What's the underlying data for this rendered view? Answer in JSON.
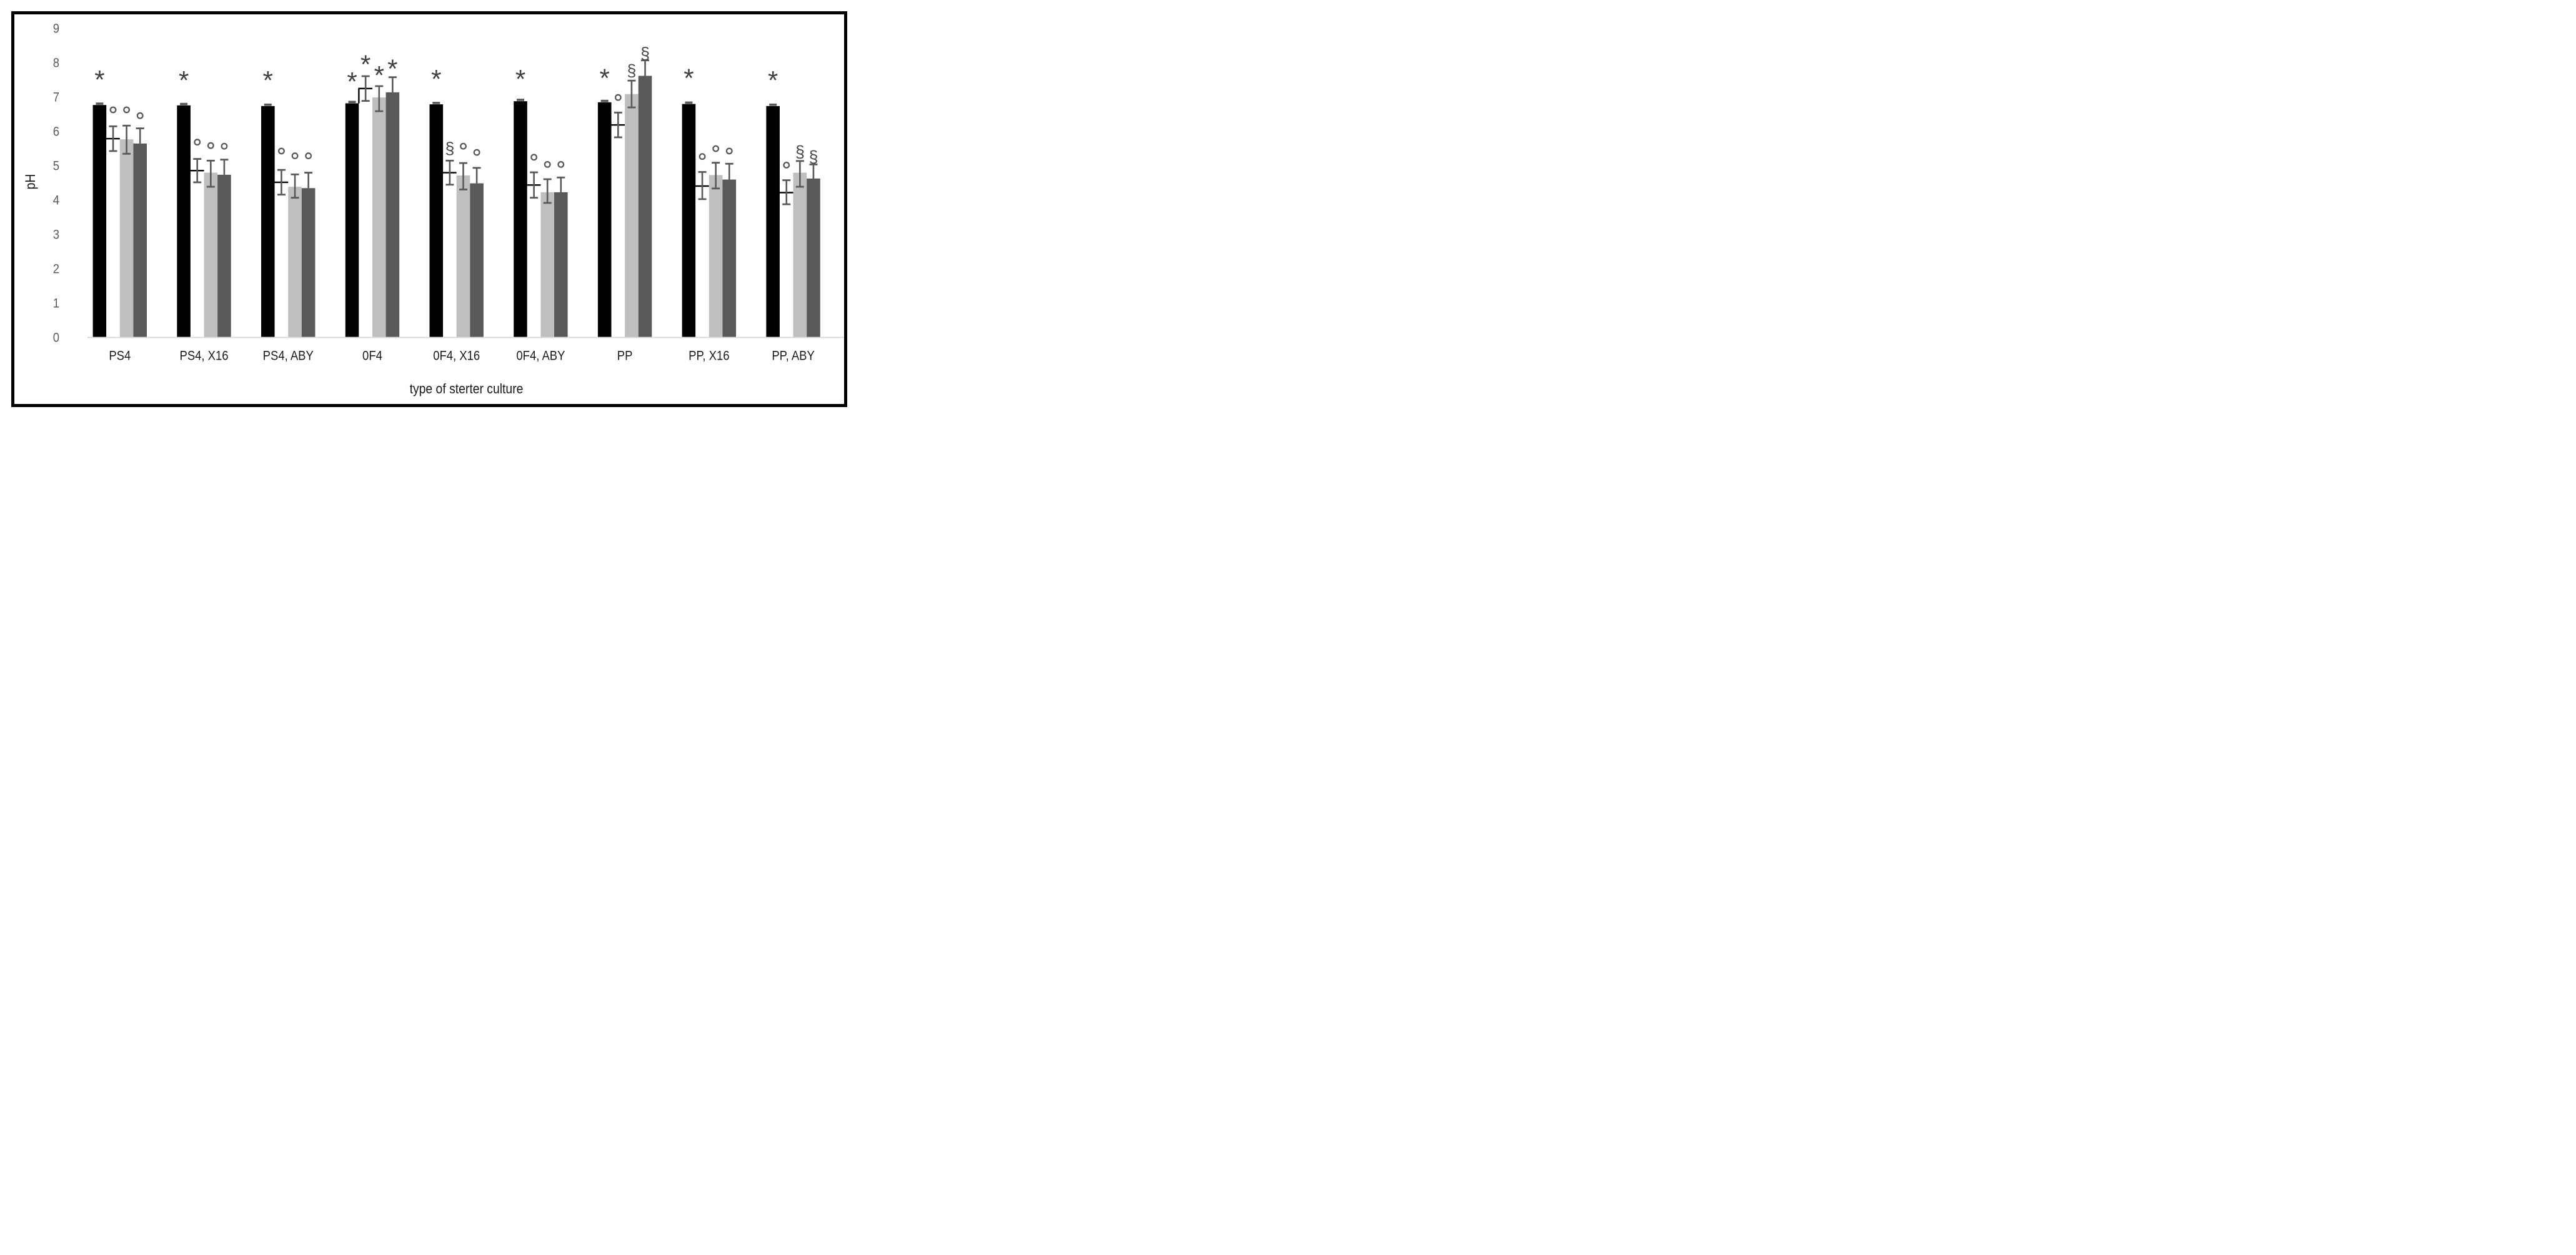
{
  "figure": {
    "background": "#ffffff",
    "border_color": "#000000"
  },
  "chart_data": {
    "type": "bar",
    "title": "",
    "xlabel": "type of sterter culture",
    "ylabel": "pH",
    "ylim": [
      0,
      9
    ],
    "yticks": [
      0,
      1,
      2,
      3,
      4,
      5,
      6,
      7,
      8,
      9
    ],
    "grid": false,
    "legend": "none",
    "baseline_color": "#d9d9d9",
    "error_bar_color": "#595959",
    "tick_label_color": "#595959",
    "axis_text_color": "#1a1a1a",
    "symbol_colors": {
      "*": "#3f3f3f",
      "deg": "#595959",
      "sect": "#4a4a4a"
    },
    "categories": [
      "PS4",
      "PS4, X16",
      "PS4, ABY",
      "0F4",
      "0F4, X16",
      "0F4, ABY",
      "PP",
      "PP, X16",
      "PP, ABY"
    ],
    "series": [
      {
        "name": "black-bar-series",
        "color": "#000000",
        "values": [
          6.76,
          6.75,
          6.73,
          6.81,
          6.78,
          6.87,
          6.84,
          6.79,
          6.73
        ],
        "err_up": [
          0.04,
          0.04,
          0.04,
          0.04,
          0.04,
          0.04,
          0.04,
          0.04,
          0.04
        ],
        "err_down": [
          0,
          0,
          0,
          0,
          0,
          0,
          0,
          0,
          0
        ],
        "symbols": [
          "*",
          "*",
          "*",
          "*",
          "*",
          "*",
          "*",
          "*",
          "*"
        ],
        "symbol_y": [
          7.6,
          7.58,
          7.58,
          7.55,
          7.62,
          7.62,
          7.65,
          7.65,
          7.58
        ]
      },
      {
        "name": "white-bar-series",
        "color": "#ffffff",
        "border_color": "#000000",
        "values": [
          5.78,
          4.85,
          4.51,
          7.24,
          4.79,
          4.43,
          6.18,
          4.4,
          4.21
        ],
        "err_up": [
          0.36,
          0.34,
          0.36,
          0.36,
          0.35,
          0.37,
          0.36,
          0.41,
          0.36
        ],
        "err_down": [
          0.36,
          0.34,
          0.36,
          0.36,
          0.35,
          0.37,
          0.36,
          0.38,
          0.34
        ],
        "symbols": [
          "deg",
          "deg",
          "deg",
          "*",
          "sect",
          "deg",
          "deg",
          "deg",
          "deg"
        ],
        "symbol_y": [
          6.62,
          5.68,
          5.42,
          8.05,
          5.52,
          5.24,
          6.98,
          5.26,
          5.01
        ]
      },
      {
        "name": "light-gray-bar-series",
        "color": "#bfbfbf",
        "values": [
          5.76,
          4.79,
          4.38,
          6.98,
          4.71,
          4.22,
          7.08,
          4.72,
          4.79
        ],
        "err_up": [
          0.4,
          0.35,
          0.36,
          0.33,
          0.36,
          0.38,
          0.39,
          0.36,
          0.34
        ],
        "err_down": [
          0.42,
          0.41,
          0.32,
          0.4,
          0.41,
          0.31,
          0.39,
          0.39,
          0.41
        ],
        "symbols": [
          "deg",
          "deg",
          "deg",
          "*",
          "deg",
          "deg",
          "sect",
          "deg",
          "sect"
        ],
        "symbol_y": [
          6.62,
          5.58,
          5.28,
          7.73,
          5.56,
          5.03,
          7.78,
          5.49,
          5.42
        ]
      },
      {
        "name": "dark-gray-bar-series",
        "color": "#595959",
        "values": [
          5.64,
          4.73,
          4.34,
          7.13,
          4.48,
          4.22,
          7.61,
          4.59,
          4.62
        ],
        "err_up": [
          0.44,
          0.44,
          0.45,
          0.44,
          0.45,
          0.43,
          0.45,
          0.46,
          0.41
        ],
        "err_down": [
          0,
          0,
          0,
          0,
          0,
          0,
          0,
          0,
          0
        ],
        "symbols": [
          "deg",
          "deg",
          "deg",
          "*",
          "deg",
          "deg",
          "sect",
          "deg",
          "sect"
        ],
        "symbol_y": [
          6.45,
          5.56,
          5.28,
          7.92,
          5.38,
          5.03,
          8.28,
          5.42,
          5.27
        ]
      }
    ]
  }
}
